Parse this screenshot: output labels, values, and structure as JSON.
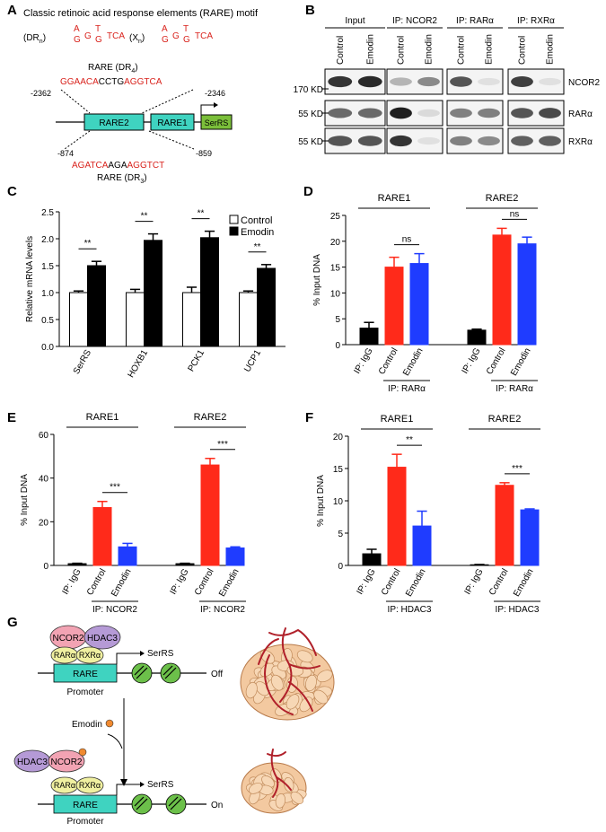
{
  "panel_letters": [
    "A",
    "B",
    "C",
    "D",
    "E",
    "F",
    "G"
  ],
  "colors": {
    "red": "#d9231d",
    "bar_red": "#ff2a1a",
    "bar_blue": "#1f3cff",
    "rare_box": "#3fd3c0",
    "serrs_box": "#7bbf3a",
    "ncor2": "#f2a3b3",
    "hdac3": "#b59ad6",
    "rar": "#f0f0a0",
    "nucleosome": "#6cc04a",
    "tumor": "#f3c9a0",
    "vessel": "#b0202a"
  },
  "panel_a": {
    "title": "Classic retinoic acid response elements (RARE) motif",
    "dr_n": "(DR",
    "dr_n_sub": "n",
    "x_n": "(X",
    "x_n_sub": "n",
    "close_paren": ")",
    "motif_alt": "A",
    "motif_g1": "G",
    "motif_g2": "G",
    "motif_t": "T",
    "motif_gg": "G",
    "motif_tca": "TCA",
    "rare_dr4_label": "RARE (DR",
    "rare_dr4_sub": "4",
    "rare_dr3_label": "RARE (DR",
    "rare_dr3_sub": "3",
    "seq2_red1": "GGAACA",
    "seq2_black": "CCTG",
    "seq2_red2": "AGGTCA",
    "seq1_red1": "AGATCA",
    "seq1_black": "AGA",
    "seq1_red2": "AGGTCT",
    "pos_2362": "-2362",
    "pos_2346": "-2346",
    "pos_874": "-874",
    "pos_859": "-859",
    "box_rare2": "RARE2",
    "box_rare1": "RARE1",
    "box_serrs": "SerRS"
  },
  "panel_b": {
    "groups": [
      "Input",
      "IP: NCOR2",
      "IP: RARα",
      "IP: RXRα"
    ],
    "lane_control": "Control",
    "lane_emodin": "Emodin",
    "row_labels": [
      "NCOR2",
      "RARα",
      "RXRα"
    ],
    "mw_labels": [
      "170 KD",
      "55 KD",
      "55 KD"
    ],
    "band_intensity": [
      [
        [
          0.85,
          0.9
        ],
        [
          0.25,
          0.45
        ],
        [
          0.7,
          0.05
        ],
        [
          0.8,
          0.05
        ]
      ],
      [
        [
          0.6,
          0.6
        ],
        [
          0.95,
          0.08
        ],
        [
          0.5,
          0.5
        ],
        [
          0.7,
          0.75
        ]
      ],
      [
        [
          0.7,
          0.7
        ],
        [
          0.85,
          0.05
        ],
        [
          0.5,
          0.45
        ],
        [
          0.65,
          0.65
        ]
      ]
    ]
  },
  "chart_data": [
    {
      "id": "C",
      "type": "bar",
      "categories": [
        "SerRS",
        "HOXB1",
        "PCK1",
        "UCP1"
      ],
      "series": [
        {
          "name": "Control",
          "values": [
            1.0,
            1.0,
            1.0,
            1.0
          ],
          "errors": [
            0.03,
            0.06,
            0.1,
            0.03
          ]
        },
        {
          "name": "Emodin",
          "values": [
            1.5,
            1.97,
            2.02,
            1.45
          ],
          "errors": [
            0.08,
            0.12,
            0.12,
            0.07
          ]
        }
      ],
      "ylabel": "Relative mRNA levels",
      "ylim": [
        0,
        2.5
      ],
      "yticks": [
        "0.0",
        "0.5",
        "1.0",
        "1.5",
        "2.0",
        "2.5"
      ],
      "sig": [
        "**",
        "**",
        "**",
        "**"
      ]
    },
    {
      "id": "D",
      "type": "bar",
      "ylabel": "% Input DNA",
      "ylim": [
        0,
        25
      ],
      "yticks": [
        "0",
        "5",
        "10",
        "15",
        "20",
        "25"
      ],
      "groups": [
        "RARE1",
        "RARE2"
      ],
      "ip_label": "IP: RARα",
      "bars": [
        {
          "label": "IP: IgG",
          "value": 3.2,
          "error": 1.1,
          "color": "black"
        },
        {
          "label": "Control",
          "value": 15.0,
          "error": 1.9,
          "color": "red"
        },
        {
          "label": "Emodin",
          "value": 15.7,
          "error": 1.9,
          "color": "blue"
        },
        {
          "label": "IP: IgG",
          "value": 2.8,
          "error": 0.2,
          "color": "black"
        },
        {
          "label": "Control",
          "value": 21.2,
          "error": 1.3,
          "color": "red"
        },
        {
          "label": "Emodin",
          "value": 19.5,
          "error": 1.3,
          "color": "blue"
        }
      ],
      "sig": [
        "ns",
        "ns"
      ]
    },
    {
      "id": "E",
      "type": "bar",
      "ylabel": "% Input DNA",
      "ylim": [
        0,
        60
      ],
      "yticks": [
        "0",
        "20",
        "40",
        "60"
      ],
      "groups": [
        "RARE1",
        "RARE2"
      ],
      "ip_label": "IP: NCOR2",
      "bars": [
        {
          "label": "IP: IgG",
          "value": 0.8,
          "error": 0.2,
          "color": "black"
        },
        {
          "label": "Control",
          "value": 26.5,
          "error": 2.8,
          "color": "red"
        },
        {
          "label": "Emodin",
          "value": 8.5,
          "error": 1.6,
          "color": "blue"
        },
        {
          "label": "IP: IgG",
          "value": 0.8,
          "error": 0.2,
          "color": "black"
        },
        {
          "label": "Control",
          "value": 46.0,
          "error": 3.0,
          "color": "red"
        },
        {
          "label": "Emodin",
          "value": 8.0,
          "error": 0.5,
          "color": "blue"
        }
      ],
      "sig": [
        "***",
        "***"
      ]
    },
    {
      "id": "F",
      "type": "bar",
      "ylabel": "% Input DNA",
      "ylim": [
        0,
        20
      ],
      "yticks": [
        "0",
        "5",
        "10",
        "15",
        "20"
      ],
      "groups": [
        "RARE1",
        "RARE2"
      ],
      "ip_label": "IP: HDAC3",
      "bars": [
        {
          "label": "IP: IgG",
          "value": 1.8,
          "error": 0.7,
          "color": "black"
        },
        {
          "label": "Control",
          "value": 15.2,
          "error": 2.0,
          "color": "red"
        },
        {
          "label": "Emodin",
          "value": 6.1,
          "error": 2.3,
          "color": "blue"
        },
        {
          "label": "IP: IgG",
          "value": 0.1,
          "error": 0.05,
          "color": "black"
        },
        {
          "label": "Control",
          "value": 12.4,
          "error": 0.4,
          "color": "red"
        },
        {
          "label": "Emodin",
          "value": 8.6,
          "error": 0.15,
          "color": "blue"
        }
      ],
      "sig": [
        "**",
        "***"
      ]
    }
  ],
  "panel_g": {
    "ncor2": "NCOR2",
    "hdac3": "HDAC3",
    "rar": "RARα",
    "rxr": "RXRα",
    "rare": "RARE",
    "serrs": "SerRS",
    "promoter": "Promoter",
    "off": "Off",
    "on": "On",
    "emodin": "Emodin"
  }
}
